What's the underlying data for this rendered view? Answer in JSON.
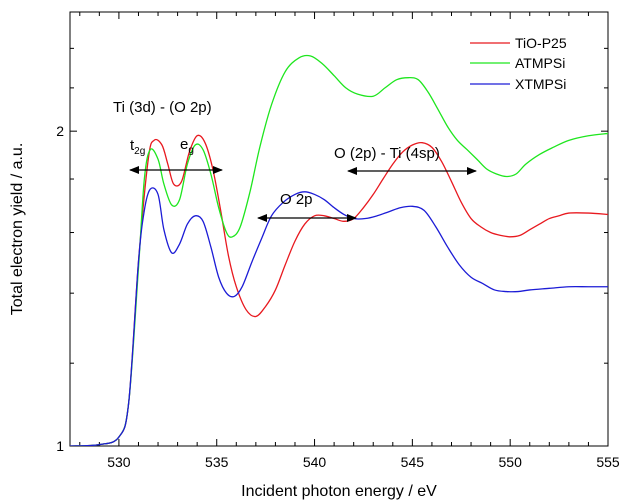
{
  "chart_data": {
    "type": "line",
    "xlabel": "Incident photon energy / eV",
    "ylabel": "Total electron yield / a.u.",
    "xlim": [
      527.5,
      555
    ],
    "ylim": [
      1,
      2.6
    ],
    "y_scale": "log",
    "x_ticks": [
      "530",
      "535",
      "540",
      "545",
      "550",
      "555"
    ],
    "y_ticks": [
      "1",
      "2"
    ],
    "grid": false,
    "legend_position": "top-right",
    "series": [
      {
        "name": "TiO-P25",
        "color": "#e8191f",
        "points": [
          [
            527.5,
            1.0
          ],
          [
            529,
            1.003
          ],
          [
            530,
            1.02
          ],
          [
            530.5,
            1.1
          ],
          [
            531,
            1.5
          ],
          [
            531.5,
            1.88
          ],
          [
            531.8,
            1.96
          ],
          [
            532.2,
            1.94
          ],
          [
            532.5,
            1.86
          ],
          [
            532.8,
            1.78
          ],
          [
            533.2,
            1.79
          ],
          [
            533.6,
            1.91
          ],
          [
            534,
            1.98
          ],
          [
            534.4,
            1.95
          ],
          [
            534.8,
            1.84
          ],
          [
            535.2,
            1.68
          ],
          [
            535.6,
            1.52
          ],
          [
            536,
            1.42
          ],
          [
            536.5,
            1.35
          ],
          [
            537,
            1.33
          ],
          [
            537.5,
            1.36
          ],
          [
            538,
            1.41
          ],
          [
            538.5,
            1.49
          ],
          [
            539,
            1.57
          ],
          [
            539.5,
            1.63
          ],
          [
            540,
            1.66
          ],
          [
            540.5,
            1.66
          ],
          [
            541,
            1.65
          ],
          [
            541.5,
            1.64
          ],
          [
            542,
            1.65
          ],
          [
            542.5,
            1.69
          ],
          [
            543,
            1.74
          ],
          [
            543.5,
            1.8
          ],
          [
            544,
            1.86
          ],
          [
            544.5,
            1.91
          ],
          [
            545,
            1.94
          ],
          [
            545.5,
            1.95
          ],
          [
            546,
            1.93
          ],
          [
            546.5,
            1.87
          ],
          [
            547,
            1.79
          ],
          [
            547.5,
            1.71
          ],
          [
            548,
            1.65
          ],
          [
            548.5,
            1.62
          ],
          [
            549,
            1.6
          ],
          [
            549.5,
            1.59
          ],
          [
            550,
            1.585
          ],
          [
            550.5,
            1.59
          ],
          [
            551,
            1.61
          ],
          [
            551.5,
            1.63
          ],
          [
            552,
            1.65
          ],
          [
            552.5,
            1.66
          ],
          [
            553,
            1.67
          ],
          [
            554,
            1.67
          ],
          [
            555,
            1.665
          ]
        ]
      },
      {
        "name": "ATMPSi",
        "color": "#1ee61e",
        "points": [
          [
            527.5,
            1.0
          ],
          [
            529,
            1.003
          ],
          [
            530,
            1.02
          ],
          [
            530.5,
            1.1
          ],
          [
            531,
            1.48
          ],
          [
            531.3,
            1.8
          ],
          [
            531.6,
            1.92
          ],
          [
            532,
            1.88
          ],
          [
            532.3,
            1.78
          ],
          [
            532.7,
            1.7
          ],
          [
            533.1,
            1.72
          ],
          [
            533.5,
            1.86
          ],
          [
            533.9,
            1.94
          ],
          [
            534.3,
            1.92
          ],
          [
            534.7,
            1.82
          ],
          [
            535.1,
            1.69
          ],
          [
            535.5,
            1.6
          ],
          [
            535.8,
            1.585
          ],
          [
            536.2,
            1.62
          ],
          [
            536.7,
            1.75
          ],
          [
            537.2,
            1.93
          ],
          [
            537.8,
            2.12
          ],
          [
            538.5,
            2.28
          ],
          [
            539.2,
            2.35
          ],
          [
            539.8,
            2.36
          ],
          [
            540.4,
            2.32
          ],
          [
            541,
            2.26
          ],
          [
            541.6,
            2.2
          ],
          [
            542.2,
            2.17
          ],
          [
            543,
            2.16
          ],
          [
            543.6,
            2.2
          ],
          [
            544.2,
            2.24
          ],
          [
            544.8,
            2.25
          ],
          [
            545.3,
            2.24
          ],
          [
            545.8,
            2.18
          ],
          [
            546.3,
            2.1
          ],
          [
            546.8,
            2.02
          ],
          [
            547.3,
            1.96
          ],
          [
            547.8,
            1.92
          ],
          [
            548.3,
            1.88
          ],
          [
            548.8,
            1.84
          ],
          [
            549.3,
            1.82
          ],
          [
            549.8,
            1.81
          ],
          [
            550.3,
            1.82
          ],
          [
            550.8,
            1.86
          ],
          [
            551.5,
            1.9
          ],
          [
            552.2,
            1.93
          ],
          [
            553,
            1.96
          ],
          [
            554,
            1.98
          ],
          [
            555,
            1.99
          ]
        ]
      },
      {
        "name": "XTMPSi",
        "color": "#1c1cd6",
        "points": [
          [
            527.5,
            1.0
          ],
          [
            529,
            1.003
          ],
          [
            530,
            1.02
          ],
          [
            530.5,
            1.1
          ],
          [
            531,
            1.5
          ],
          [
            531.3,
            1.68
          ],
          [
            531.6,
            1.76
          ],
          [
            532,
            1.74
          ],
          [
            532.3,
            1.61
          ],
          [
            532.7,
            1.53
          ],
          [
            533.1,
            1.56
          ],
          [
            533.5,
            1.63
          ],
          [
            533.9,
            1.66
          ],
          [
            534.3,
            1.64
          ],
          [
            534.7,
            1.55
          ],
          [
            535.1,
            1.45
          ],
          [
            535.5,
            1.4
          ],
          [
            535.9,
            1.39
          ],
          [
            536.3,
            1.42
          ],
          [
            536.8,
            1.5
          ],
          [
            537.3,
            1.58
          ],
          [
            537.8,
            1.66
          ],
          [
            538.4,
            1.71
          ],
          [
            539,
            1.74
          ],
          [
            539.5,
            1.75
          ],
          [
            540,
            1.74
          ],
          [
            540.5,
            1.72
          ],
          [
            541,
            1.69
          ],
          [
            541.5,
            1.665
          ],
          [
            542,
            1.65
          ],
          [
            542.6,
            1.65
          ],
          [
            543.2,
            1.66
          ],
          [
            543.8,
            1.675
          ],
          [
            544.4,
            1.69
          ],
          [
            545,
            1.695
          ],
          [
            545.6,
            1.68
          ],
          [
            546.2,
            1.62
          ],
          [
            546.8,
            1.55
          ],
          [
            547.4,
            1.49
          ],
          [
            548,
            1.45
          ],
          [
            548.6,
            1.43
          ],
          [
            549.2,
            1.41
          ],
          [
            549.8,
            1.405
          ],
          [
            550.4,
            1.405
          ],
          [
            551,
            1.41
          ],
          [
            552,
            1.415
          ],
          [
            553,
            1.42
          ],
          [
            554,
            1.42
          ],
          [
            555,
            1.42
          ]
        ]
      }
    ],
    "annotations": {
      "ti3d_o2p": "Ti (3d) - (O 2p)",
      "t2g_main": "t",
      "t2g_sub": "2g",
      "eg_main": "e",
      "eg_sub": "g",
      "o2p": "O 2p",
      "o2p_ti4sp": "O (2p) - Ti (4sp)"
    }
  }
}
